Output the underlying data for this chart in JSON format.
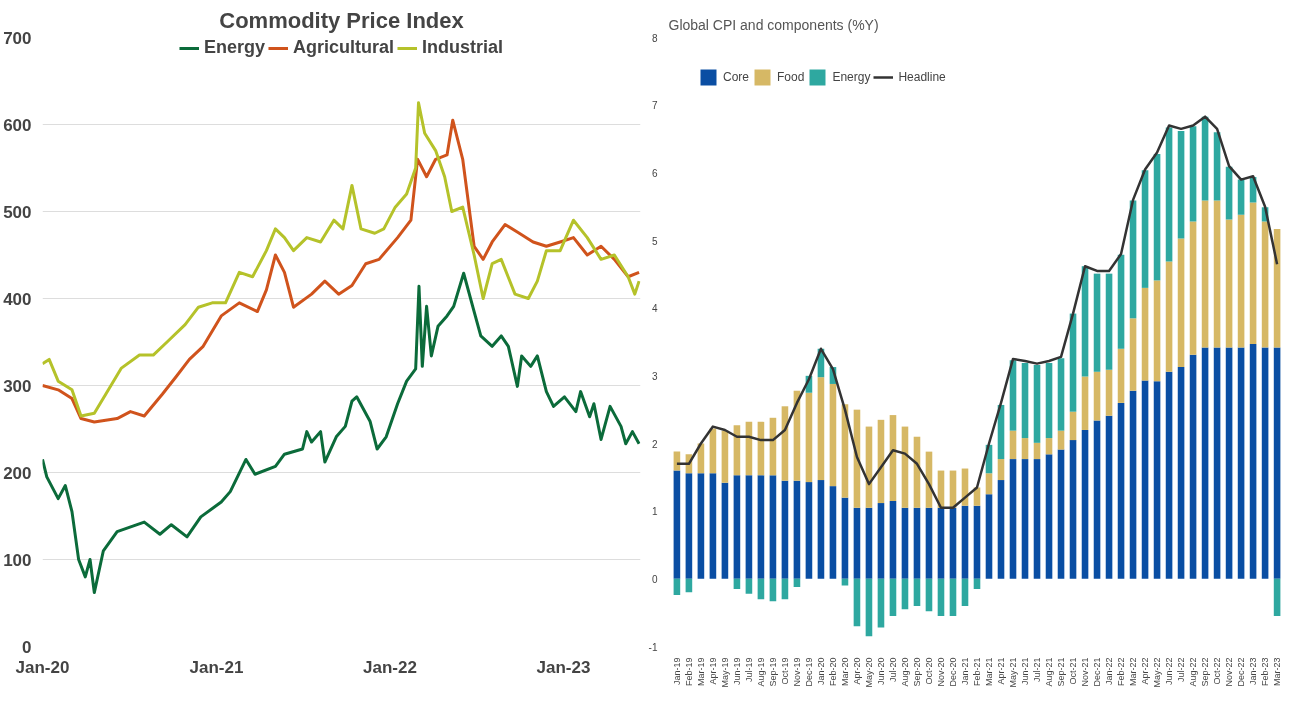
{
  "chart_data": [
    {
      "type": "line",
      "title": "Commodity Price Index",
      "legend": "top",
      "grid": "y",
      "xlim": [
        "2020-01-01",
        "2023-06-12"
      ],
      "ylim": [
        0,
        700
      ],
      "yticks": [
        0,
        100,
        200,
        300,
        400,
        500,
        600,
        700
      ],
      "xticks": [
        {
          "value": "2020-01-01",
          "label": "Jan-20"
        },
        {
          "value": "2021-01-01",
          "label": "Jan-21"
        },
        {
          "value": "2022-01-01",
          "label": "Jan-22"
        },
        {
          "value": "2023-01-01",
          "label": "Jan-23"
        }
      ],
      "series": [
        {
          "name": "Energy",
          "color": "#0b6b3a",
          "x": [
            "2020-01-01",
            "2020-01-10",
            "2020-02-03",
            "2020-02-18",
            "2020-03-03",
            "2020-03-17",
            "2020-03-31",
            "2020-04-10",
            "2020-04-19",
            "2020-05-08",
            "2020-06-06",
            "2020-08-02",
            "2020-09-04",
            "2020-09-28",
            "2020-10-31",
            "2020-11-29",
            "2021-01-11",
            "2021-01-30",
            "2021-03-04",
            "2021-03-23",
            "2021-05-05",
            "2021-05-24",
            "2021-07-01",
            "2021-07-10",
            "2021-07-20",
            "2021-08-08",
            "2021-08-17",
            "2021-09-10",
            "2021-09-29",
            "2021-10-13",
            "2021-10-23",
            "2021-11-20",
            "2021-12-05",
            "2021-12-24",
            "2022-01-17",
            "2022-02-05",
            "2022-02-24",
            "2022-03-03",
            "2022-03-10",
            "2022-03-19",
            "2022-03-29",
            "2022-04-12",
            "2022-05-01",
            "2022-05-15",
            "2022-06-05",
            "2022-06-27",
            "2022-07-11",
            "2022-08-04",
            "2022-08-23",
            "2022-09-07",
            "2022-09-26",
            "2022-10-05",
            "2022-10-24",
            "2022-11-07",
            "2022-11-26",
            "2022-12-11",
            "2023-01-03",
            "2023-01-27",
            "2023-02-06",
            "2023-02-25",
            "2023-03-06",
            "2023-03-21",
            "2023-04-09",
            "2023-05-02",
            "2023-05-12",
            "2023-05-26",
            "2023-06-09"
          ],
          "values": [
            215,
            195,
            170,
            185,
            155,
            100,
            80,
            100,
            62,
            110,
            132,
            143,
            129,
            140,
            126,
            149,
            166,
            178,
            215,
            198,
            207,
            221,
            227,
            247,
            235,
            247,
            212,
            241,
            253,
            282,
            287,
            259,
            227,
            241,
            279,
            305,
            319,
            414,
            322,
            391,
            334,
            368,
            380,
            391,
            429,
            385,
            357,
            345,
            357,
            345,
            299,
            334,
            322,
            334,
            293,
            276,
            287,
            270,
            293,
            264,
            279,
            238,
            276,
            253,
            233,
            247,
            233
          ]
        },
        {
          "name": "Agricultural",
          "color": "#d0531c",
          "x": [
            "2020-01-01",
            "2020-02-03",
            "2020-03-03",
            "2020-03-22",
            "2020-04-19",
            "2020-06-06",
            "2020-07-04",
            "2020-08-02",
            "2020-09-09",
            "2020-10-08",
            "2020-11-05",
            "2020-12-04",
            "2021-01-11",
            "2021-02-18",
            "2021-03-28",
            "2021-04-16",
            "2021-05-05",
            "2021-05-24",
            "2021-06-12",
            "2021-07-20",
            "2021-08-17",
            "2021-09-15",
            "2021-10-13",
            "2021-11-11",
            "2021-12-09",
            "2022-01-17",
            "2022-02-14",
            "2022-02-28",
            "2022-03-19",
            "2022-04-07",
            "2022-05-01",
            "2022-05-13",
            "2022-06-03",
            "2022-06-27",
            "2022-07-16",
            "2022-08-04",
            "2022-08-31",
            "2022-09-30",
            "2022-10-29",
            "2022-11-26",
            "2022-12-25",
            "2023-01-22",
            "2023-02-20",
            "2023-03-21",
            "2023-04-18",
            "2023-05-17",
            "2023-06-09"
          ],
          "values": [
            300,
            295,
            285,
            262,
            258,
            262,
            270,
            265,
            290,
            310,
            330,
            345,
            380,
            395,
            385,
            410,
            450,
            430,
            390,
            405,
            420,
            405,
            415,
            440,
            445,
            470,
            490,
            560,
            540,
            560,
            565,
            605,
            560,
            460,
            445,
            465,
            485,
            475,
            465,
            460,
            465,
            470,
            450,
            460,
            445,
            425,
            430
          ]
        },
        {
          "name": "Industrial",
          "color": "#b5c22a",
          "x": [
            "2020-01-01",
            "2020-01-15",
            "2020-02-03",
            "2020-03-03",
            "2020-03-22",
            "2020-04-19",
            "2020-05-13",
            "2020-06-15",
            "2020-07-23",
            "2020-08-21",
            "2020-09-19",
            "2020-10-27",
            "2020-11-24",
            "2020-12-23",
            "2021-01-20",
            "2021-02-18",
            "2021-03-18",
            "2021-04-16",
            "2021-05-05",
            "2021-05-24",
            "2021-06-12",
            "2021-07-10",
            "2021-08-08",
            "2021-09-05",
            "2021-09-24",
            "2021-10-13",
            "2021-11-01",
            "2021-11-30",
            "2021-12-19",
            "2022-01-12",
            "2022-02-05",
            "2022-02-24",
            "2022-03-02",
            "2022-03-15",
            "2022-04-07",
            "2022-04-26",
            "2022-05-11",
            "2022-06-03",
            "2022-06-27",
            "2022-07-16",
            "2022-08-04",
            "2022-08-23",
            "2022-09-21",
            "2022-10-19",
            "2022-11-07",
            "2022-11-26",
            "2022-12-25",
            "2023-01-22",
            "2023-02-20",
            "2023-03-21",
            "2023-04-18",
            "2023-05-17",
            "2023-05-31",
            "2023-06-09"
          ],
          "values": [
            325,
            330,
            305,
            295,
            265,
            268,
            290,
            320,
            335,
            335,
            350,
            370,
            390,
            395,
            395,
            430,
            425,
            455,
            480,
            470,
            455,
            470,
            465,
            490,
            480,
            530,
            480,
            475,
            480,
            505,
            520,
            550,
            625,
            590,
            570,
            540,
            500,
            505,
            450,
            400,
            440,
            445,
            405,
            400,
            420,
            455,
            455,
            490,
            470,
            445,
            450,
            425,
            405,
            420
          ]
        }
      ]
    },
    {
      "type": "bar",
      "stacked": true,
      "title": "Global CPI and components (%Y)",
      "legend": "top left",
      "ylim": [
        -1,
        8
      ],
      "yticks": [
        -1,
        0,
        1,
        2,
        3,
        4,
        5,
        6,
        7,
        8
      ],
      "categories": [
        "Jan-19",
        "Feb-19",
        "Mar-19",
        "Apr-19",
        "May-19",
        "Jun-19",
        "Jul-19",
        "Aug-19",
        "Sep-19",
        "Oct-19",
        "Nov-19",
        "Dec-19",
        "Jan-20",
        "Feb-20",
        "Mar-20",
        "Apr-20",
        "May-20",
        "Jun-20",
        "Jul-20",
        "Aug-20",
        "Sep-20",
        "Oct-20",
        "Nov-20",
        "Dec-20",
        "Jan-21",
        "Feb-21",
        "Mar-21",
        "Apr-21",
        "May-21",
        "Jun-21",
        "Jul-21",
        "Aug-21",
        "Sep-21",
        "Oct-21",
        "Nov-21",
        "Dec-21",
        "Jan-22",
        "Feb-22",
        "Mar-22",
        "Apr-22",
        "May-22",
        "Jun-22",
        "Jul-22",
        "Aug-22",
        "Sep-22",
        "Oct-22",
        "Nov-22",
        "Dec-22",
        "Jan-23",
        "Feb-23",
        "Mar-23"
      ],
      "series": [
        {
          "name": "Core",
          "color": "#0a4ea3",
          "values": [
            1.6,
            1.56,
            1.56,
            1.56,
            1.42,
            1.53,
            1.53,
            1.53,
            1.53,
            1.45,
            1.45,
            1.43,
            1.46,
            1.37,
            1.2,
            1.05,
            1.05,
            1.12,
            1.15,
            1.05,
            1.05,
            1.05,
            1.05,
            1.05,
            1.08,
            1.08,
            1.25,
            1.46,
            1.77,
            1.77,
            1.77,
            1.84,
            1.91,
            2.05,
            2.2,
            2.34,
            2.41,
            2.6,
            2.78,
            2.93,
            2.92,
            3.06,
            3.13,
            3.31,
            3.42,
            3.42,
            3.42,
            3.42,
            3.47,
            3.42,
            3.42
          ]
        },
        {
          "name": "Food",
          "color": "#d6b865",
          "values": [
            0.28,
            0.28,
            0.44,
            0.66,
            0.77,
            0.74,
            0.79,
            0.79,
            0.85,
            1.1,
            1.33,
            1.32,
            1.52,
            1.51,
            1.38,
            1.45,
            1.2,
            1.23,
            1.27,
            1.2,
            1.05,
            0.83,
            0.55,
            0.55,
            0.55,
            0.27,
            0.31,
            0.31,
            0.42,
            0.31,
            0.24,
            0.24,
            0.28,
            0.42,
            0.79,
            0.72,
            0.68,
            0.8,
            1.07,
            1.37,
            1.49,
            1.63,
            1.9,
            1.97,
            2.17,
            2.17,
            1.89,
            1.96,
            2.09,
            1.86,
            1.75
          ]
        },
        {
          "name": "Energy",
          "color": "#2ea8a0",
          "values": [
            -0.24,
            -0.2,
            0,
            0,
            0,
            -0.15,
            -0.22,
            -0.3,
            -0.33,
            -0.3,
            -0.12,
            0.25,
            0.42,
            0.25,
            -0.1,
            -0.7,
            -0.85,
            -0.72,
            -0.55,
            -0.45,
            -0.4,
            -0.48,
            -0.55,
            -0.55,
            -0.4,
            -0.15,
            0.42,
            0.8,
            1.04,
            1.11,
            1.15,
            1.11,
            1.07,
            1.45,
            1.63,
            1.45,
            1.42,
            1.39,
            1.74,
            1.74,
            1.87,
            1.98,
            1.59,
            1.41,
            1.24,
            1.01,
            0.78,
            0.52,
            0.38,
            0.21,
            -0.55
          ]
        },
        {
          "name": "Headline",
          "type": "line",
          "color": "#333333",
          "values": [
            1.7,
            1.7,
            2.0,
            2.25,
            2.2,
            2.1,
            2.1,
            2.05,
            2.05,
            2.2,
            2.6,
            2.95,
            3.4,
            3.1,
            2.5,
            1.8,
            1.4,
            1.65,
            1.9,
            1.85,
            1.7,
            1.4,
            1.05,
            1.05,
            1.2,
            1.35,
            2.0,
            2.6,
            3.25,
            3.22,
            3.18,
            3.22,
            3.28,
            3.92,
            4.62,
            4.55,
            4.55,
            4.8,
            5.6,
            6.05,
            6.3,
            6.7,
            6.65,
            6.7,
            6.83,
            6.65,
            6.1,
            5.9,
            5.95,
            5.5,
            4.65
          ]
        }
      ]
    }
  ]
}
